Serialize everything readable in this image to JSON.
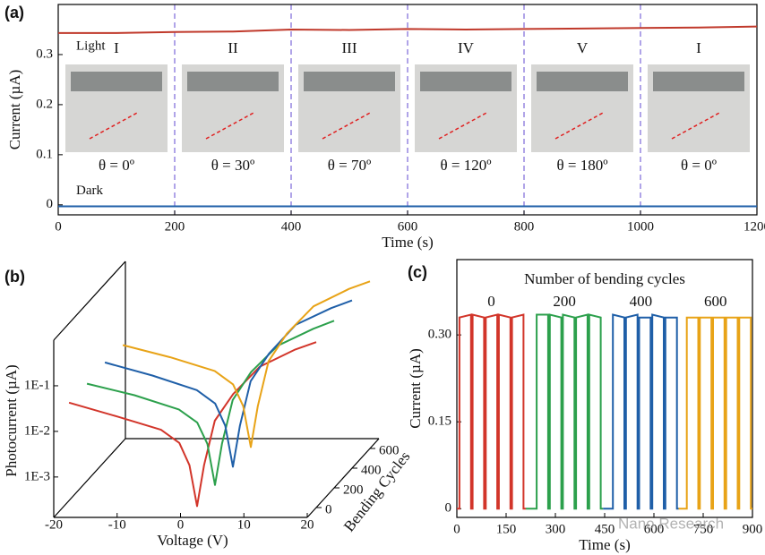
{
  "chart_data": [
    {
      "type": "line",
      "panel": "(a)",
      "xlabel": "Time (s)",
      "ylabel": "Current (µA)",
      "xlim": [
        0,
        1200
      ],
      "ylim": [
        -0.02,
        0.4
      ],
      "xticks": [
        0,
        200,
        400,
        600,
        800,
        1000,
        1200
      ],
      "yticks": [
        0,
        0.1,
        0.2,
        0.3
      ],
      "legend": "inline-left",
      "dividers": [
        200,
        400,
        600,
        800,
        1000
      ],
      "segments": [
        {
          "label": "I",
          "angle": "θ = 0º"
        },
        {
          "label": "II",
          "angle": "θ = 30º"
        },
        {
          "label": "III",
          "angle": "θ = 70º"
        },
        {
          "label": "IV",
          "angle": "θ = 120º"
        },
        {
          "label": "V",
          "angle": "θ = 180º"
        },
        {
          "label": "I",
          "angle": "θ = 0º"
        }
      ],
      "x": [
        0,
        100,
        200,
        300,
        400,
        500,
        600,
        700,
        800,
        900,
        1000,
        1100,
        1200
      ],
      "series": [
        {
          "name": "Light",
          "color": "#c0392b",
          "values": [
            0.343,
            0.343,
            0.345,
            0.346,
            0.35,
            0.349,
            0.351,
            0.35,
            0.351,
            0.352,
            0.353,
            0.354,
            0.356
          ]
        },
        {
          "name": "Dark",
          "color": "#1f5fa8",
          "values": [
            -0.003,
            -0.003,
            -0.003,
            -0.003,
            -0.003,
            -0.003,
            -0.003,
            -0.003,
            -0.003,
            -0.003,
            -0.003,
            -0.003,
            -0.003
          ]
        }
      ]
    },
    {
      "type": "line3d",
      "panel": "(b)",
      "xlabel": "Voltage (V)",
      "ylabel": "Photocurrent (µA)",
      "zlabel": "Bending Cycles",
      "xlim": [
        -20,
        20
      ],
      "ylim": [
        0.00013,
        1
      ],
      "zlim": [
        -100,
        700
      ],
      "yscale": "log",
      "xticks": [
        -20,
        -10,
        0,
        10,
        20
      ],
      "yticks": [
        {
          "value": 0.001,
          "label": "1E-3"
        },
        {
          "value": 0.01,
          "label": "1E-2"
        },
        {
          "value": 0.1,
          "label": "1E-1"
        }
      ],
      "zticks": [
        0,
        200,
        400,
        600
      ],
      "x": [
        -19,
        -11.5,
        -4.5,
        -1.6,
        0,
        1.2,
        2.3,
        4,
        6.9,
        11.1,
        16.7,
        20
      ],
      "series": [
        {
          "z": 0,
          "color": "#d2352a",
          "values": [
            0.026,
            0.013,
            0.0066,
            0.0034,
            0.0011,
            0.00014,
            0.0011,
            0.0104,
            0.04,
            0.16,
            0.38,
            0.55
          ]
        },
        {
          "z": 200,
          "color": "#2ca04c",
          "values": [
            0.025,
            0.014,
            0.0068,
            0.0035,
            0.0012,
            0.00015,
            0.0012,
            0.011,
            0.045,
            0.17,
            0.4,
            0.6
          ]
        },
        {
          "z": 400,
          "color": "#1f5fa8",
          "values": [
            0.027,
            0.014,
            0.0067,
            0.0034,
            0.0011,
            0.00014,
            0.0011,
            0.0105,
            0.042,
            0.18,
            0.42,
            0.62
          ]
        },
        {
          "z": 600,
          "color": "#e8a317",
          "values": [
            0.024,
            0.013,
            0.0065,
            0.0033,
            0.0011,
            0.00014,
            0.0011,
            0.0106,
            0.043,
            0.17,
            0.41,
            0.6
          ]
        }
      ]
    },
    {
      "type": "line",
      "panel": "(c)",
      "xlabel": "Time (s)",
      "ylabel": "Current (µA)",
      "annotation": "Number of bending cycles",
      "xlim": [
        0,
        900
      ],
      "ylim": [
        -0.015,
        0.43
      ],
      "xticks": [
        0,
        150,
        300,
        450,
        600,
        750,
        900
      ],
      "yticks": [
        0,
        0.15,
        {
          "value": 0.3,
          "label": "0.30"
        }
      ],
      "legend": "inline-top",
      "series": [
        {
          "name": "0",
          "color": "#d2352a",
          "x": [
            0,
            8,
            8,
            43,
            43,
            48,
            48,
            83,
            83,
            88,
            88,
            123,
            123,
            128,
            128,
            163,
            163,
            168,
            168,
            203,
            203,
            210
          ],
          "values": [
            0,
            0,
            0.33,
            0.335,
            0,
            0,
            0.335,
            0.33,
            0,
            0,
            0.33,
            0.335,
            0,
            0,
            0.335,
            0.33,
            0,
            0,
            0.33,
            0.335,
            0,
            0
          ]
        },
        {
          "name": "200",
          "color": "#2ca04c",
          "x": [
            210,
            243,
            243,
            278,
            278,
            283,
            283,
            318,
            318,
            323,
            323,
            358,
            358,
            363,
            363,
            398,
            398,
            403,
            403,
            438,
            438,
            445
          ],
          "values": [
            0,
            0,
            0.335,
            0.335,
            0,
            0,
            0.335,
            0.33,
            0,
            0,
            0.335,
            0.33,
            0,
            0,
            0.33,
            0.335,
            0,
            0,
            0.335,
            0.33,
            0,
            0
          ]
        },
        {
          "name": "400",
          "color": "#1f5fa8",
          "x": [
            445,
            475,
            475,
            510,
            510,
            515,
            515,
            550,
            550,
            555,
            555,
            590,
            590,
            595,
            595,
            630,
            630,
            635,
            635,
            670,
            670,
            675
          ],
          "values": [
            0,
            0,
            0.335,
            0.33,
            0,
            0,
            0.33,
            0.335,
            0,
            0,
            0.33,
            0.33,
            0,
            0,
            0.335,
            0.33,
            0,
            0,
            0.33,
            0.33,
            0,
            0
          ]
        },
        {
          "name": "600",
          "color": "#e8a317",
          "x": [
            675,
            700,
            700,
            735,
            735,
            740,
            740,
            775,
            775,
            780,
            780,
            815,
            815,
            820,
            820,
            855,
            855,
            860,
            860,
            895,
            895,
            900
          ],
          "values": [
            0,
            0,
            0.33,
            0.33,
            0,
            0,
            0.33,
            0.33,
            0,
            0,
            0.33,
            0.33,
            0,
            0,
            0.33,
            0.33,
            0,
            0,
            0.33,
            0.33,
            0,
            0
          ]
        }
      ]
    }
  ],
  "watermark": "Nano Research"
}
